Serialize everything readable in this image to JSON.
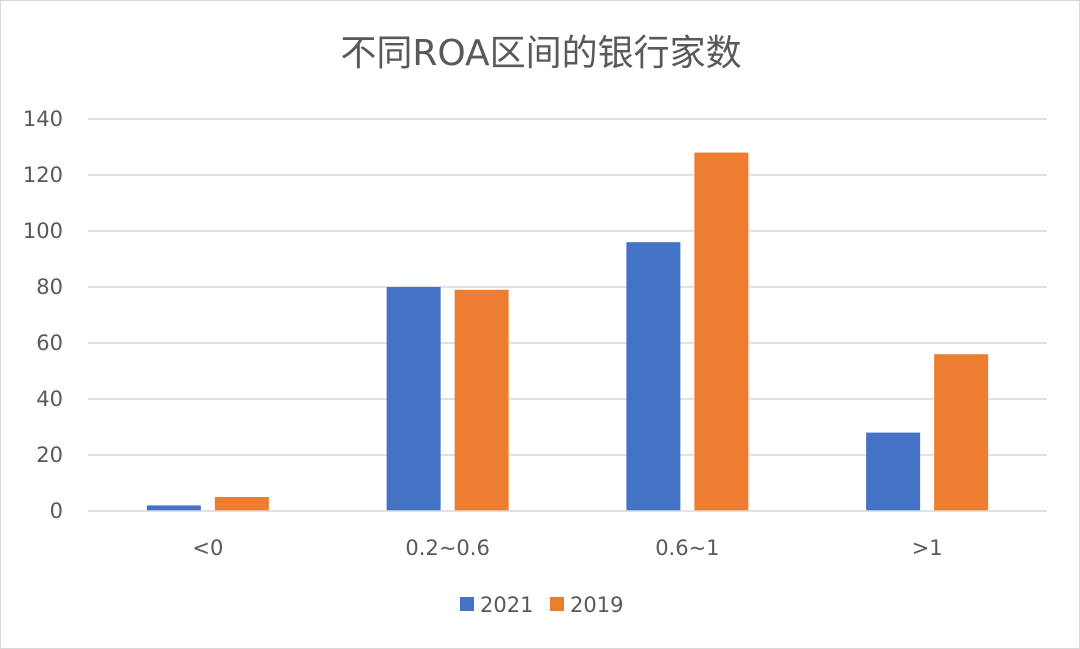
{
  "chart_data": {
    "type": "bar",
    "title": "不同ROA区间的银行家数",
    "xlabel": "",
    "ylabel": "",
    "categories": [
      "<0",
      "0.2~0.6",
      "0.6~1",
      ">1"
    ],
    "series": [
      {
        "name": "2021",
        "color": "#4472c4",
        "values": [
          2,
          80,
          96,
          28
        ]
      },
      {
        "name": "2019",
        "color": "#ed7d31",
        "values": [
          5,
          79,
          128,
          56
        ]
      }
    ],
    "ylim": [
      0,
      140
    ],
    "yticks": [
      0,
      20,
      40,
      60,
      80,
      100,
      120,
      140
    ],
    "grid": true,
    "legend": "bottom"
  }
}
